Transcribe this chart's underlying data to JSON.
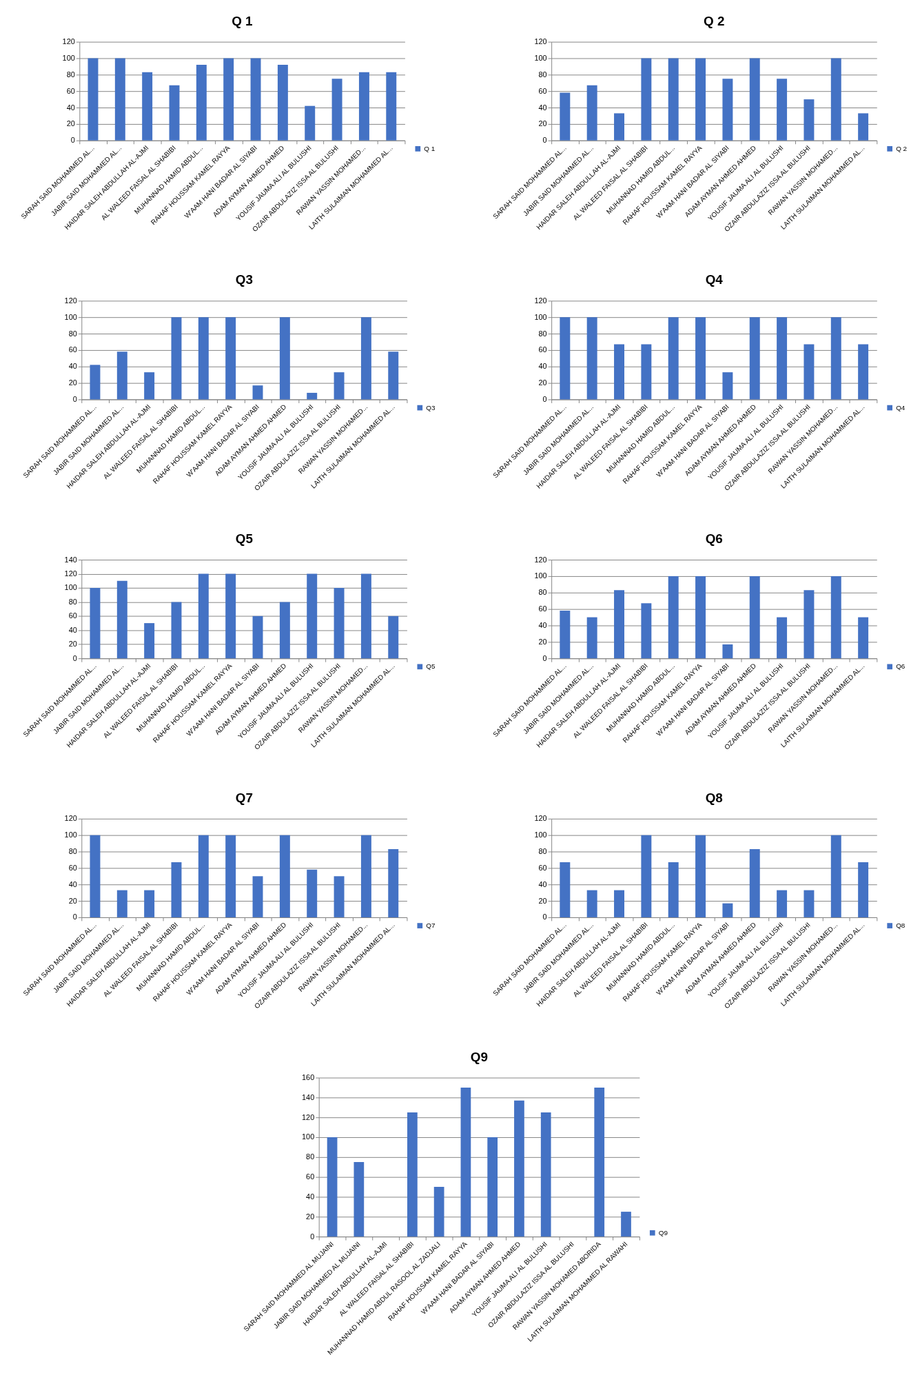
{
  "chart_data": [
    {
      "type": "bar",
      "title": "Q 1",
      "categories": [
        "SARAH SAID MOHAMMED AL...",
        "JABIR SAID MOHAMMED AL...",
        "HAIDAR SALEH ABDULLAH AL-AJMI",
        "AL WALEED FAISAL AL SHABIBI",
        "MUHANNAD HAMID ABDUL...",
        "RAHAF HOUSSAM KAMEL RAYYA",
        "W'AAM HANI BADAR AL SIYABI",
        "ADAM AYMAN AHMED AHMED",
        "YOUSIF JAUMA ALI AL BULUSHI",
        "OZAIR ABDULAZIZ ISSA AL BULUSHI",
        "RAWAN YASSIN MOHAMED...",
        "LAITH SULAIMAN MOHAMMED AL..."
      ],
      "series": [
        {
          "name": "Q 1",
          "color": "#4472c4",
          "values": [
            100,
            100,
            83,
            67,
            92,
            100,
            100,
            92,
            42,
            75,
            83,
            83
          ]
        }
      ],
      "ylim": [
        0,
        120
      ],
      "yticks": [
        0,
        20,
        40,
        60,
        80,
        100,
        120
      ],
      "grid": "y",
      "legend": "right"
    },
    {
      "type": "bar",
      "title": "Q 2",
      "categories": [
        "SARAH SAID MOHAMMED AL...",
        "JABIR SAID MOHAMMED AL...",
        "HAIDAR SALEH ABDULLAH AL-AJMI",
        "AL WALEED FAISAL AL SHABIBI",
        "MUHANNAD HAMID ABDUL...",
        "RAHAF HOUSSAM KAMEL RAYYA",
        "W'AAM HANI BADAR AL SIYABI",
        "ADAM AYMAN AHMED AHMED",
        "YOUSIF JAUMA ALI AL BULUSHI",
        "OZAIR ABDULAZIZ ISSA AL BULUSHI",
        "RAWAN YASSIN MOHAMED...",
        "LAITH SULAIMAN MOHAMMED AL..."
      ],
      "series": [
        {
          "name": "Q 2",
          "color": "#4472c4",
          "values": [
            58,
            67,
            33,
            100,
            100,
            100,
            75,
            100,
            75,
            50,
            100,
            33
          ]
        }
      ],
      "ylim": [
        0,
        120
      ],
      "yticks": [
        0,
        20,
        40,
        60,
        80,
        100,
        120
      ],
      "grid": "y",
      "legend": "right"
    },
    {
      "type": "bar",
      "title": "Q3",
      "categories": [
        "SARAH SAID MOHAMMED AL...",
        "JABIR SAID MOHAMMED AL...",
        "HAIDAR SALEH ABDULLAH AL-AJMI",
        "AL WALEED FAISAL AL SHABIBI",
        "MUHANNAD HAMID ABDUL...",
        "RAHAF HOUSSAM KAMEL RAYYA",
        "W'AAM HANI BADAR AL SIYABI",
        "ADAM AYMAN AHMED AHMED",
        "YOUSIF JAUMA ALI AL BULUSHI",
        "OZAIR ABDULAZIZ ISSA AL BULUSHI",
        "RAWAN YASSIN MOHAMED...",
        "LAITH SULAIMAN MOHAMMED AL..."
      ],
      "series": [
        {
          "name": "Q3",
          "color": "#4472c4",
          "values": [
            42,
            58,
            33,
            100,
            100,
            100,
            17,
            100,
            8,
            33,
            100,
            58
          ]
        }
      ],
      "ylim": [
        0,
        120
      ],
      "yticks": [
        0,
        20,
        40,
        60,
        80,
        100,
        120
      ],
      "grid": "y",
      "legend": "right"
    },
    {
      "type": "bar",
      "title": "Q4",
      "categories": [
        "SARAH SAID MOHAMMED AL...",
        "JABIR SAID MOHAMMED AL...",
        "HAIDAR SALEH ABDULLAH AL-AJMI",
        "AL WALEED FAISAL AL SHABIBI",
        "MUHANNAD HAMID ABDUL...",
        "RAHAF HOUSSAM KAMEL RAYYA",
        "W'AAM HANI BADAR AL SIYABI",
        "ADAM AYMAN AHMED AHMED",
        "YOUSIF JAUMA ALI AL BULUSHI",
        "OZAIR ABDULAZIZ ISSA AL BULUSHI",
        "RAWAN YASSIN MOHAMED...",
        "LAITH SULAIMAN MOHAMMED AL..."
      ],
      "series": [
        {
          "name": "Q4",
          "color": "#4472c4",
          "values": [
            100,
            100,
            67,
            67,
            100,
            100,
            33,
            100,
            100,
            67,
            100,
            67
          ]
        }
      ],
      "ylim": [
        0,
        120
      ],
      "yticks": [
        0,
        20,
        40,
        60,
        80,
        100,
        120
      ],
      "grid": "y",
      "legend": "right"
    },
    {
      "type": "bar",
      "title": "Q5",
      "categories": [
        "SARAH SAID MOHAMMED AL...",
        "JABIR SAID MOHAMMED AL...",
        "HAIDAR SALEH ABDULLAH AL-AJMI",
        "AL WALEED FAISAL AL SHABIBI",
        "MUHANNAD HAMID ABDUL...",
        "RAHAF HOUSSAM KAMEL RAYYA",
        "W'AAM HANI BADAR AL SIYABI",
        "ADAM AYMAN AHMED AHMED",
        "YOUSIF JAUMA ALI AL BULUSHI",
        "OZAIR ABDULAZIZ ISSA AL BULUSHI",
        "RAWAN YASSIN MOHAMED...",
        "LAITH SULAIMAN MOHAMMED AL..."
      ],
      "series": [
        {
          "name": "Q5",
          "color": "#4472c4",
          "values": [
            100,
            110,
            50,
            80,
            120,
            120,
            60,
            80,
            120,
            100,
            120,
            60
          ]
        }
      ],
      "ylim": [
        0,
        140
      ],
      "yticks": [
        0,
        20,
        40,
        60,
        80,
        100,
        120,
        140
      ],
      "grid": "y",
      "legend": "right"
    },
    {
      "type": "bar",
      "title": "Q6",
      "categories": [
        "SARAH SAID MOHAMMED AL...",
        "JABIR SAID MOHAMMED AL...",
        "HAIDAR SALEH ABDULLAH AL-AJMI",
        "AL WALEED FAISAL AL SHABIBI",
        "MUHANNAD HAMID ABDUL...",
        "RAHAF HOUSSAM KAMEL RAYYA",
        "W'AAM HANI BADAR AL SIYABI",
        "ADAM AYMAN AHMED AHMED",
        "YOUSIF JAUMA ALI AL BULUSHI",
        "OZAIR ABDULAZIZ ISSA AL BULUSHI",
        "RAWAN YASSIN MOHAMED...",
        "LAITH SULAIMAN MOHAMMED AL..."
      ],
      "series": [
        {
          "name": "Q6",
          "color": "#4472c4",
          "values": [
            58,
            50,
            83,
            67,
            100,
            100,
            17,
            100,
            50,
            83,
            100,
            50
          ]
        }
      ],
      "ylim": [
        0,
        120
      ],
      "yticks": [
        0,
        20,
        40,
        60,
        80,
        100,
        120
      ],
      "grid": "y",
      "legend": "right"
    },
    {
      "type": "bar",
      "title": "Q7",
      "categories": [
        "SARAH SAID MOHAMMED AL...",
        "JABIR SAID MOHAMMED AL...",
        "HAIDAR SALEH ABDULLAH AL-AJMI",
        "AL WALEED FAISAL AL SHABIBI",
        "MUHANNAD HAMID ABDUL...",
        "RAHAF HOUSSAM KAMEL RAYYA",
        "W'AAM HANI BADAR AL SIYABI",
        "ADAM AYMAN AHMED AHMED",
        "YOUSIF JAUMA ALI AL BULUSHI",
        "OZAIR ABDULAZIZ ISSA AL BULUSHI",
        "RAWAN YASSIN MOHAMED...",
        "LAITH SULAIMAN MOHAMMED AL..."
      ],
      "series": [
        {
          "name": "Q7",
          "color": "#4472c4",
          "values": [
            100,
            33,
            33,
            67,
            100,
            100,
            50,
            100,
            58,
            50,
            100,
            83
          ]
        }
      ],
      "ylim": [
        0,
        120
      ],
      "yticks": [
        0,
        20,
        40,
        60,
        80,
        100,
        120
      ],
      "grid": "y",
      "legend": "right"
    },
    {
      "type": "bar",
      "title": "Q8",
      "categories": [
        "SARAH SAID MOHAMMED AL...",
        "JABIR SAID MOHAMMED AL...",
        "HAIDAR SALEH ABDULLAH AL-AJMI",
        "AL WALEED FAISAL AL SHABIBI",
        "MUHANNAD HAMID ABDUL...",
        "RAHAF HOUSSAM KAMEL RAYYA",
        "W'AAM HANI BADAR AL SIYABI",
        "ADAM AYMAN AHMED AHMED",
        "YOUSIF JAUMA ALI AL BULUSHI",
        "OZAIR ABDULAZIZ ISSA AL BULUSHI",
        "RAWAN YASSIN MOHAMED...",
        "LAITH SULAIMAN MOHAMMED AL..."
      ],
      "series": [
        {
          "name": "Q8",
          "color": "#4472c4",
          "values": [
            67,
            33,
            33,
            100,
            67,
            100,
            17,
            83,
            33,
            33,
            100,
            67
          ]
        }
      ],
      "ylim": [
        0,
        120
      ],
      "yticks": [
        0,
        20,
        40,
        60,
        80,
        100,
        120
      ],
      "grid": "y",
      "legend": "right"
    },
    {
      "type": "bar",
      "title": "Q9",
      "categories": [
        "SARAH SAID MOHAMMED AL MUJAINI",
        "JABIR SAID MOHAMMED AL MUJAINI",
        "HAIDAR SALEH ABDULLAH AL-AJMI",
        "AL WALEED FAISAL AL SHABIBI",
        "MUHANNAD HAMID ABDUL RASOOL AL ZADJALI",
        "RAHAF HOUSSAM KAMEL RAYYA",
        "W'AAM HANI BADAR AL SIYABI",
        "ADAM AYMAN AHMED AHMED",
        "YOUSIF JAUMA ALI AL BULUSHI",
        "OZAIR ABDULAZIZ ISSA AL BULUSHI",
        "RAWAN YASSIN MOHAMED ABORIDA",
        "LAITH SULAIMAN MOHAMMED AL RAWAHI"
      ],
      "series": [
        {
          "name": "Q9",
          "color": "#4472c4",
          "values": [
            100,
            75,
            null,
            125,
            50,
            150,
            100,
            137,
            125,
            null,
            150,
            25
          ]
        }
      ],
      "ylim": [
        0,
        160
      ],
      "yticks": [
        0,
        20,
        40,
        60,
        80,
        100,
        120,
        140,
        160
      ],
      "grid": "y",
      "legend": "right"
    }
  ]
}
